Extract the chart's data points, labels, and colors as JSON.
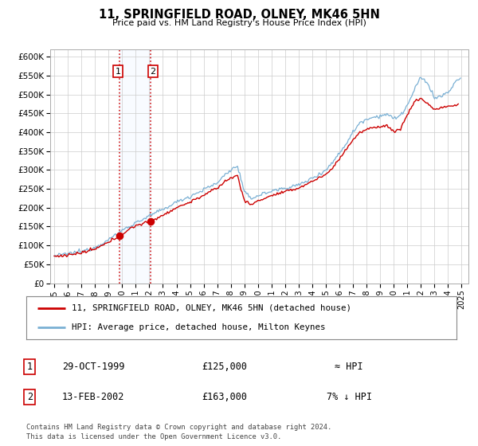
{
  "title": "11, SPRINGFIELD ROAD, OLNEY, MK46 5HN",
  "subtitle": "Price paid vs. HM Land Registry's House Price Index (HPI)",
  "ylim": [
    0,
    620000
  ],
  "yticks": [
    0,
    50000,
    100000,
    150000,
    200000,
    250000,
    300000,
    350000,
    400000,
    450000,
    500000,
    550000,
    600000
  ],
  "ytick_labels": [
    "£0",
    "£50K",
    "£100K",
    "£150K",
    "£200K",
    "£250K",
    "£300K",
    "£350K",
    "£400K",
    "£450K",
    "£500K",
    "£550K",
    "£600K"
  ],
  "xlim_start": 1994.7,
  "xlim_end": 2025.5,
  "xtick_years": [
    1995,
    1996,
    1997,
    1998,
    1999,
    2000,
    2001,
    2002,
    2003,
    2004,
    2005,
    2006,
    2007,
    2008,
    2009,
    2010,
    2011,
    2012,
    2013,
    2014,
    2015,
    2016,
    2017,
    2018,
    2019,
    2020,
    2021,
    2022,
    2023,
    2024,
    2025
  ],
  "sale1_x": 1999.83,
  "sale1_y": 125000,
  "sale2_x": 2002.12,
  "sale2_y": 163000,
  "sale_color": "#cc0000",
  "hpi_color": "#7ab0d4",
  "legend_label1": "11, SPRINGFIELD ROAD, OLNEY, MK46 5HN (detached house)",
  "legend_label2": "HPI: Average price, detached house, Milton Keynes",
  "table_row1_num": "1",
  "table_row1_date": "29-OCT-1999",
  "table_row1_price": "£125,000",
  "table_row1_hpi": "≈ HPI",
  "table_row2_num": "2",
  "table_row2_date": "13-FEB-2002",
  "table_row2_price": "£163,000",
  "table_row2_hpi": "7% ↓ HPI",
  "footnote": "Contains HM Land Registry data © Crown copyright and database right 2024.\nThis data is licensed under the Open Government Licence v3.0.",
  "background_color": "#ffffff",
  "grid_color": "#cccccc",
  "shade_color": "#ddeeff"
}
